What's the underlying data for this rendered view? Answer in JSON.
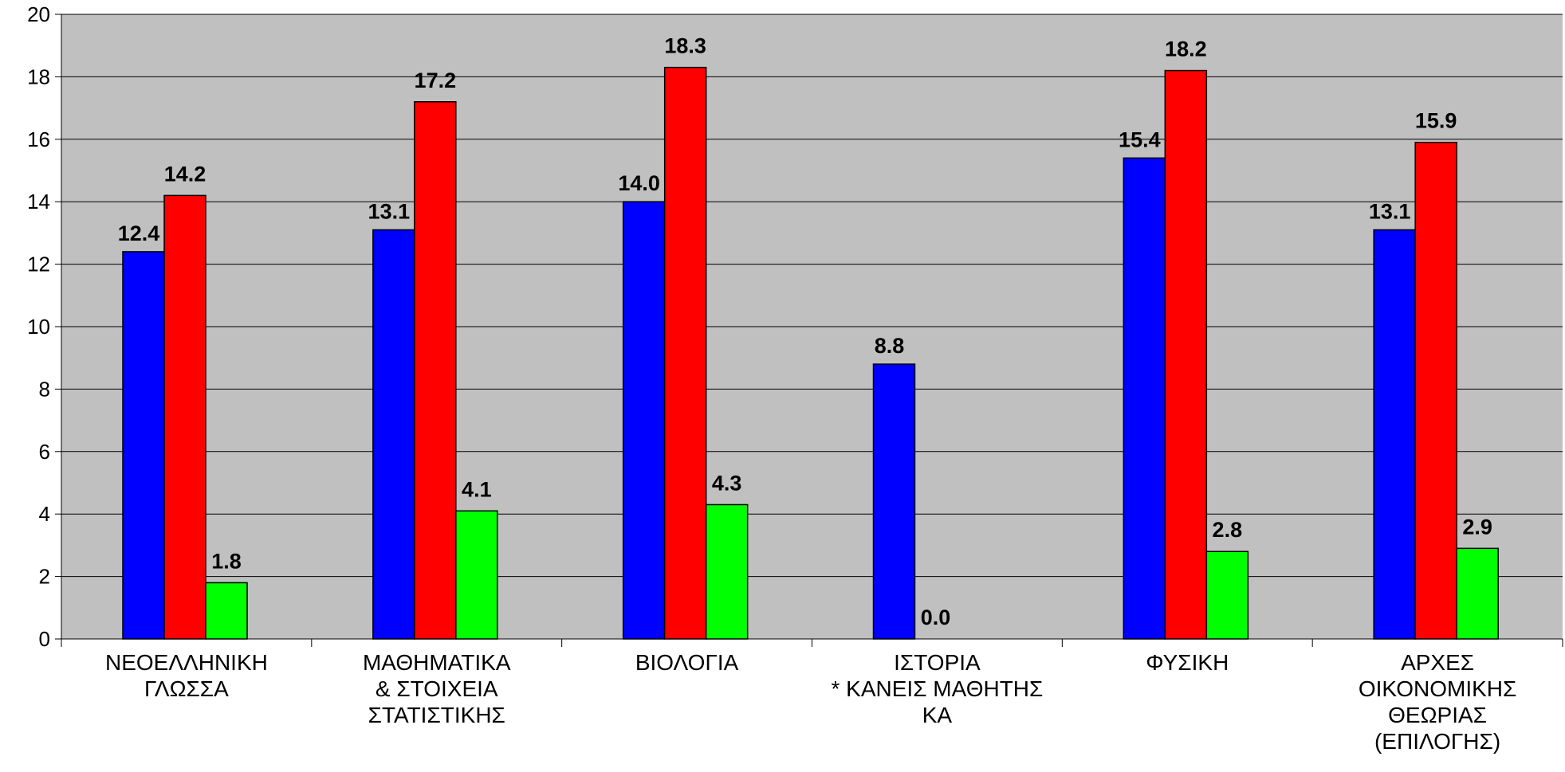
{
  "chart_data": {
    "type": "bar",
    "title": "",
    "xlabel": "",
    "ylabel": "",
    "ylim": [
      0,
      20
    ],
    "yticks": [
      0,
      2,
      4,
      6,
      8,
      10,
      12,
      14,
      16,
      18,
      20
    ],
    "grid": true,
    "legend": "none",
    "plot_background": "#c0c0c0",
    "categories": [
      [
        "ΝΕΟΕΛΛΗΝΙΚΗ",
        "ΓΛΩΣΣΑ"
      ],
      [
        "ΜΑΘΗΜΑΤΙΚΑ",
        "& ΣΤΟΙΧΕΙΑ",
        "ΣΤΑΤΙΣΤΙΚΗΣ"
      ],
      [
        "ΒΙΟΛΟΓΙΑ"
      ],
      [
        "ΙΣΤΟΡΙΑ",
        "* ΚΑΝΕΙΣ ΜΑΘΗΤΗΣ",
        "ΚΑ"
      ],
      [
        "ΦΥΣΙΚΗ"
      ],
      [
        "ΑΡΧΕΣ",
        "ΟΙΚΟΝΟΜΙΚΗΣ",
        "ΘΕΩΡΙΑΣ",
        "(ΕΠΙΛΟΓΗΣ)"
      ]
    ],
    "series": [
      {
        "color": "#0000ff",
        "values": [
          12.4,
          13.1,
          14.0,
          8.8,
          15.4,
          13.1
        ],
        "labels": [
          "12.4",
          "13.1",
          "14.0",
          "8.8",
          "15.4",
          "13.1"
        ]
      },
      {
        "color": "#ff0000",
        "values": [
          14.2,
          17.2,
          18.3,
          0.0,
          18.2,
          15.9
        ],
        "labels": [
          "14.2",
          "17.2",
          "18.3",
          "0.0",
          "18.2",
          "15.9"
        ]
      },
      {
        "color": "#00ff00",
        "values": [
          1.8,
          4.1,
          4.3,
          null,
          2.8,
          2.9
        ],
        "labels": [
          "1.8",
          "4.1",
          "4.3",
          null,
          "2.8",
          "2.9"
        ]
      }
    ]
  }
}
